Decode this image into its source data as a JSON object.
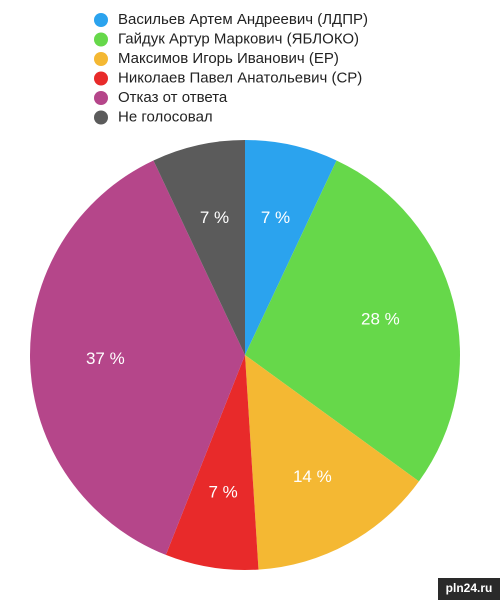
{
  "chart_data": {
    "type": "pie",
    "categories": [
      "Васильев Артем Андреевич (ЛДПР)",
      "Гайдук Артур Маркович (ЯБЛОКО)",
      "Максимов Игорь Иванович (ЕР)",
      "Николаев Павел Анатольевич (СР)",
      "Отказ от ответа",
      "Не голосовал"
    ],
    "values": [
      7,
      28,
      14,
      7,
      37,
      7
    ],
    "value_labels": [
      "7 %",
      "28 %",
      "14 %",
      "7 %",
      "37 %",
      "7 %"
    ],
    "colors": [
      "#2ba3ee",
      "#66d84a",
      "#f4b833",
      "#e82a2a",
      "#b5468a",
      "#5b5b5b"
    ]
  },
  "watermark": "pln24.ru"
}
